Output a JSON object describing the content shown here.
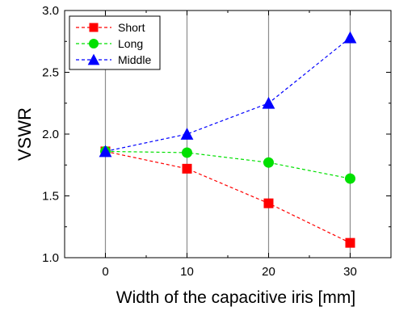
{
  "chart_data": {
    "type": "line",
    "title": "",
    "xlabel": "Width of the capacitive iris [mm]",
    "ylabel": "VSWR",
    "x": [
      0,
      10,
      20,
      30
    ],
    "xlim": [
      -5,
      35
    ],
    "ylim": [
      1.0,
      3.0
    ],
    "xticks": [
      0,
      10,
      20,
      30
    ],
    "xtick_labels": [
      "0",
      "10",
      "20",
      "30"
    ],
    "yticks": [
      1.0,
      1.5,
      2.0,
      2.5,
      3.0
    ],
    "ytick_labels": [
      "1.0",
      "1.5",
      "2.0",
      "2.5",
      "3.0"
    ],
    "grid": "vertical",
    "legend_position": "top-left",
    "series": [
      {
        "name": "Short",
        "values": [
          1.86,
          1.72,
          1.44,
          1.12
        ],
        "color": "#ff0000",
        "marker": "square"
      },
      {
        "name": "Long",
        "values": [
          1.86,
          1.85,
          1.77,
          1.64
        ],
        "color": "#00e000",
        "marker": "circle"
      },
      {
        "name": "Middle",
        "values": [
          1.86,
          2.0,
          2.25,
          2.78
        ],
        "color": "#0000ff",
        "marker": "triangle"
      }
    ]
  }
}
